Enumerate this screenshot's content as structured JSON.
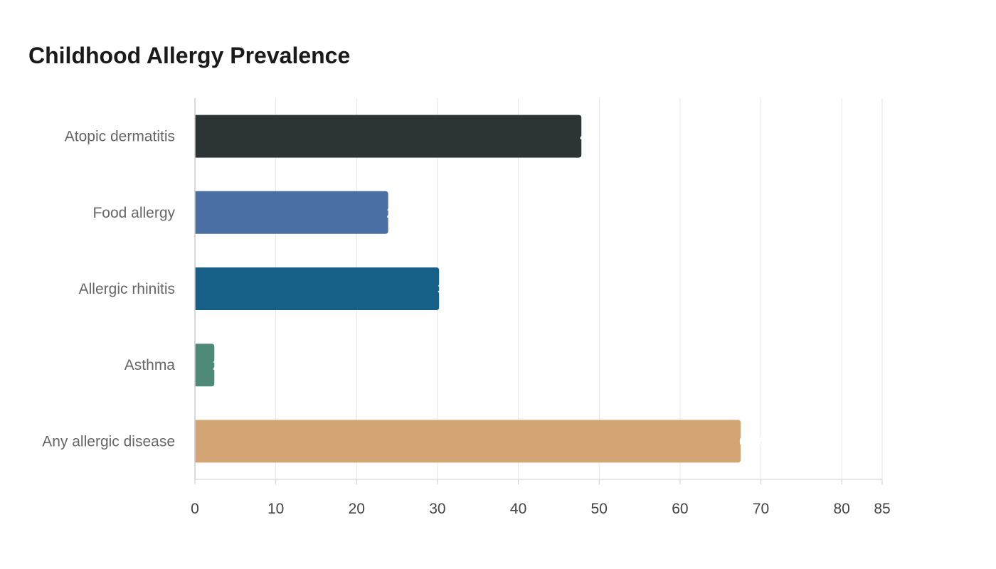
{
  "chart_data": {
    "type": "bar",
    "orientation": "horizontal",
    "title": "Childhood Allergy Prevalence",
    "xlabel": "",
    "ylabel": "",
    "categories": [
      "Atopic dermatitis",
      "Food allergy",
      "Allergic rhinitis",
      "Asthma",
      "Any allergic disease"
    ],
    "values": [
      47.8,
      23.9,
      30.2,
      2.4,
      67.5
    ],
    "colors": [
      "#2d3436",
      "#4a6fa5",
      "#166088",
      "#4f8a78",
      "#d4a574"
    ],
    "xlim": [
      0,
      85
    ],
    "xticks": [
      0,
      10,
      20,
      30,
      40,
      50,
      60,
      70,
      80,
      85
    ],
    "grid": true,
    "legend": "none"
  }
}
